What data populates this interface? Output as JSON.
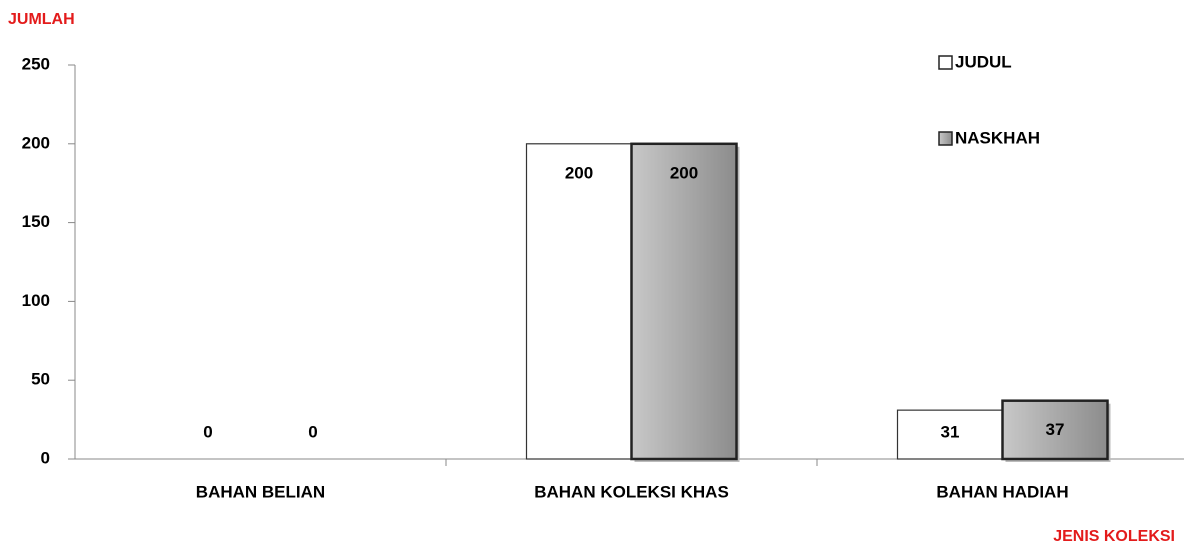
{
  "chart_data": {
    "type": "bar",
    "y_label": "JUMLAH",
    "x_label": "JENIS KOLEKSI",
    "categories": [
      "BAHAN BELIAN",
      "BAHAN KOLEKSI KHAS",
      "BAHAN HADIAH"
    ],
    "series": [
      {
        "name": "JUDUL",
        "color": "#ffffff",
        "values": [
          0,
          200,
          31
        ]
      },
      {
        "name": "NASKHAH",
        "color": "#8c8c8c",
        "values": [
          0,
          200,
          37
        ]
      }
    ],
    "ylim": [
      0,
      250
    ],
    "yticks": [
      0,
      50,
      100,
      150,
      200,
      250
    ],
    "grid": false,
    "legend": "top-right"
  }
}
